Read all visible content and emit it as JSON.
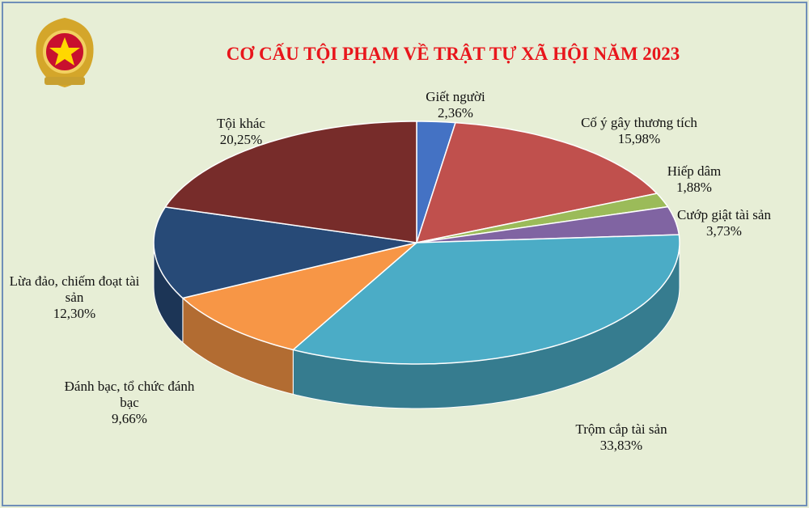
{
  "chart_data": {
    "type": "pie3d",
    "title": "CƠ CẤU TỘI PHẠM VỀ TRẬT TỰ XÃ HỘI NĂM 2023",
    "categories": [
      "Giết người",
      "Cố ý gây thương tích",
      "Hiếp dâm",
      "Cướp giật tài sản",
      "Trộm cắp tài sản",
      "Đánh bạc, tổ chức đánh bạc",
      "Lừa đảo, chiếm đoạt tài sản",
      "Tội khác"
    ],
    "values": [
      2.36,
      15.98,
      1.88,
      3.73,
      33.83,
      9.66,
      12.3,
      20.25
    ],
    "value_labels": [
      "2,36%",
      "15,98%",
      "1,88%",
      "3,73%",
      "33,83%",
      "9,66%",
      "12,30%",
      "20,25%"
    ],
    "colors": [
      "#4472c4",
      "#c0504d",
      "#9bbb59",
      "#8064a2",
      "#4bacc6",
      "#f79646",
      "#274a77",
      "#772c2a"
    ]
  }
}
